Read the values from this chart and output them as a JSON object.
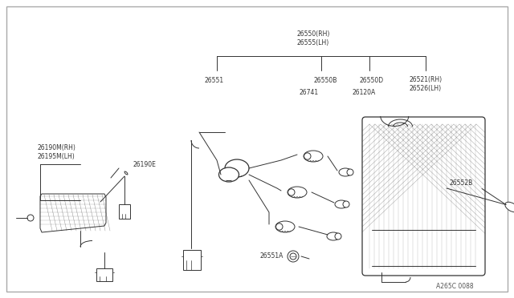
{
  "bg_color": "#ffffff",
  "line_color": "#333333",
  "fig_width": 6.4,
  "fig_height": 3.72,
  "dpi": 100,
  "watermark": "A265C 0088",
  "labels": {
    "top_rh_lh": "26550(RH)\n26555(LH)",
    "l26551": "26551",
    "l26550B": "26550B",
    "l26741": "26741",
    "l26550D": "26550D",
    "l26120A": "26120A",
    "l26521": "26521(RH)\n26526(LH)",
    "l26551A": "26551A",
    "l26552B": "26552B",
    "l26190M": "26190M(RH)\n26195M(LH)",
    "l26190E": "26190E"
  }
}
